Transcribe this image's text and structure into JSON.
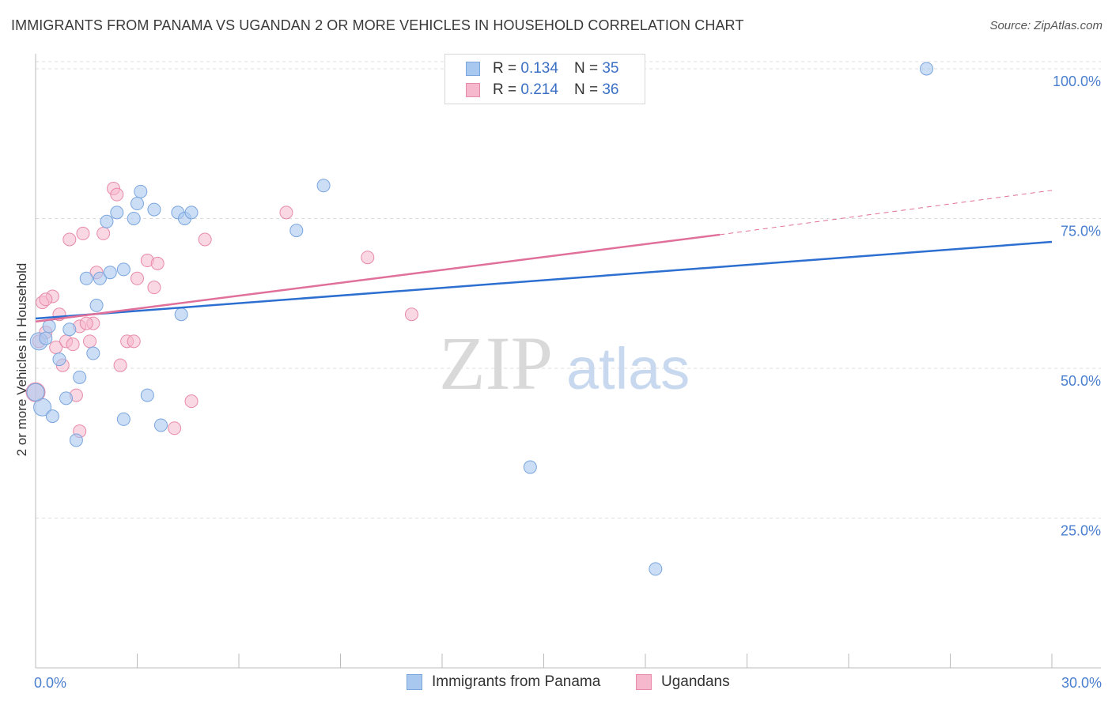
{
  "title": "IMMIGRANTS FROM PANAMA VS UGANDAN 2 OR MORE VEHICLES IN HOUSEHOLD CORRELATION CHART",
  "source": "Source: ZipAtlas.com",
  "watermark": {
    "zip": "ZIP",
    "atlas": "atlas"
  },
  "colors": {
    "blue_fill": "#a9c8f0",
    "blue_stroke": "#7aa5dd",
    "blue_line": "#2d6fd0",
    "pink_fill": "#f5b8cc",
    "pink_stroke": "#e88aa8",
    "pink_line": "#e0709a",
    "tick_text": "#4a7fcf",
    "grid": "#dddddd"
  },
  "legend": {
    "series1": {
      "r_label": "R =",
      "r_value": "0.134",
      "n_label": "N =",
      "n_value": "35"
    },
    "series2": {
      "r_label": "R =",
      "r_value": "0.214",
      "n_label": "N =",
      "n_value": "36"
    }
  },
  "chart_data": {
    "type": "scatter",
    "title": "IMMIGRANTS FROM PANAMA VS UGANDAN 2 OR MORE VEHICLES IN HOUSEHOLD CORRELATION CHART",
    "xlabel": "",
    "ylabel": "2 or more Vehicles in Household",
    "xlim": [
      0,
      30
    ],
    "ylim": [
      0,
      102.5
    ],
    "x_tick_labels": [
      "0.0%",
      "30.0%"
    ],
    "y_ticks": [
      25,
      50,
      75,
      100
    ],
    "y_tick_labels": [
      "25.0%",
      "50.0%",
      "75.0%",
      "100.0%"
    ],
    "grid": true,
    "legend_position": "bottom-center",
    "series": [
      {
        "name": "Immigrants from Panama",
        "color": "#a9c8f0",
        "points": [
          [
            0.1,
            54.5
          ],
          [
            0.2,
            43.5
          ],
          [
            0.3,
            55.0
          ],
          [
            0.4,
            57.0
          ],
          [
            0.5,
            42.0
          ],
          [
            0.7,
            51.5
          ],
          [
            0.9,
            45.0
          ],
          [
            1.0,
            56.5
          ],
          [
            1.2,
            38.0
          ],
          [
            1.3,
            48.5
          ],
          [
            1.5,
            65.0
          ],
          [
            1.7,
            52.5
          ],
          [
            1.8,
            60.5
          ],
          [
            1.9,
            65.0
          ],
          [
            2.1,
            74.5
          ],
          [
            2.2,
            66.0
          ],
          [
            2.4,
            76.0
          ],
          [
            2.6,
            66.5
          ],
          [
            2.6,
            41.5
          ],
          [
            2.9,
            75.0
          ],
          [
            3.0,
            77.5
          ],
          [
            3.1,
            79.5
          ],
          [
            3.3,
            45.5
          ],
          [
            3.5,
            76.5
          ],
          [
            3.7,
            40.5
          ],
          [
            4.2,
            76.0
          ],
          [
            4.3,
            59.0
          ],
          [
            4.4,
            75.0
          ],
          [
            4.6,
            76.0
          ],
          [
            7.7,
            73.0
          ],
          [
            8.5,
            80.5
          ],
          [
            14.6,
            33.5
          ],
          [
            18.3,
            16.5
          ],
          [
            26.3,
            100.0
          ],
          [
            0.0,
            46.0
          ]
        ]
      },
      {
        "name": "Ugandans",
        "color": "#f5b8cc",
        "points": [
          [
            0.0,
            46.0
          ],
          [
            0.1,
            54.5
          ],
          [
            0.2,
            61.0
          ],
          [
            0.3,
            56.0
          ],
          [
            0.5,
            62.0
          ],
          [
            0.6,
            53.5
          ],
          [
            0.7,
            59.0
          ],
          [
            0.8,
            50.5
          ],
          [
            0.9,
            54.5
          ],
          [
            1.0,
            71.5
          ],
          [
            1.1,
            54.0
          ],
          [
            1.2,
            45.5
          ],
          [
            1.3,
            57.0
          ],
          [
            1.3,
            39.5
          ],
          [
            1.4,
            72.5
          ],
          [
            1.6,
            54.5
          ],
          [
            1.7,
            57.5
          ],
          [
            1.8,
            66.0
          ],
          [
            2.0,
            72.5
          ],
          [
            2.3,
            80.0
          ],
          [
            2.4,
            79.0
          ],
          [
            2.5,
            50.5
          ],
          [
            2.7,
            54.5
          ],
          [
            2.9,
            54.5
          ],
          [
            3.0,
            65.0
          ],
          [
            3.3,
            68.0
          ],
          [
            3.5,
            63.5
          ],
          [
            3.6,
            67.5
          ],
          [
            4.1,
            40.0
          ],
          [
            4.6,
            44.5
          ],
          [
            5.0,
            71.5
          ],
          [
            7.4,
            76.0
          ],
          [
            9.8,
            68.5
          ],
          [
            11.1,
            59.0
          ],
          [
            0.3,
            61.5
          ],
          [
            1.5,
            57.5
          ]
        ]
      }
    ],
    "trend_lines": [
      {
        "series": "Immigrants from Panama",
        "x0": 0,
        "y0": 58.3,
        "x1": 30,
        "y1": 71.1,
        "style": "solid"
      },
      {
        "series": "Ugandans",
        "x0": 0,
        "y0": 57.8,
        "x1": 20.2,
        "y1": 72.3,
        "style": "solid"
      },
      {
        "series": "Ugandans",
        "x0": 20.2,
        "y0": 72.3,
        "x1": 30,
        "y1": 79.7,
        "style": "dashed"
      }
    ]
  }
}
